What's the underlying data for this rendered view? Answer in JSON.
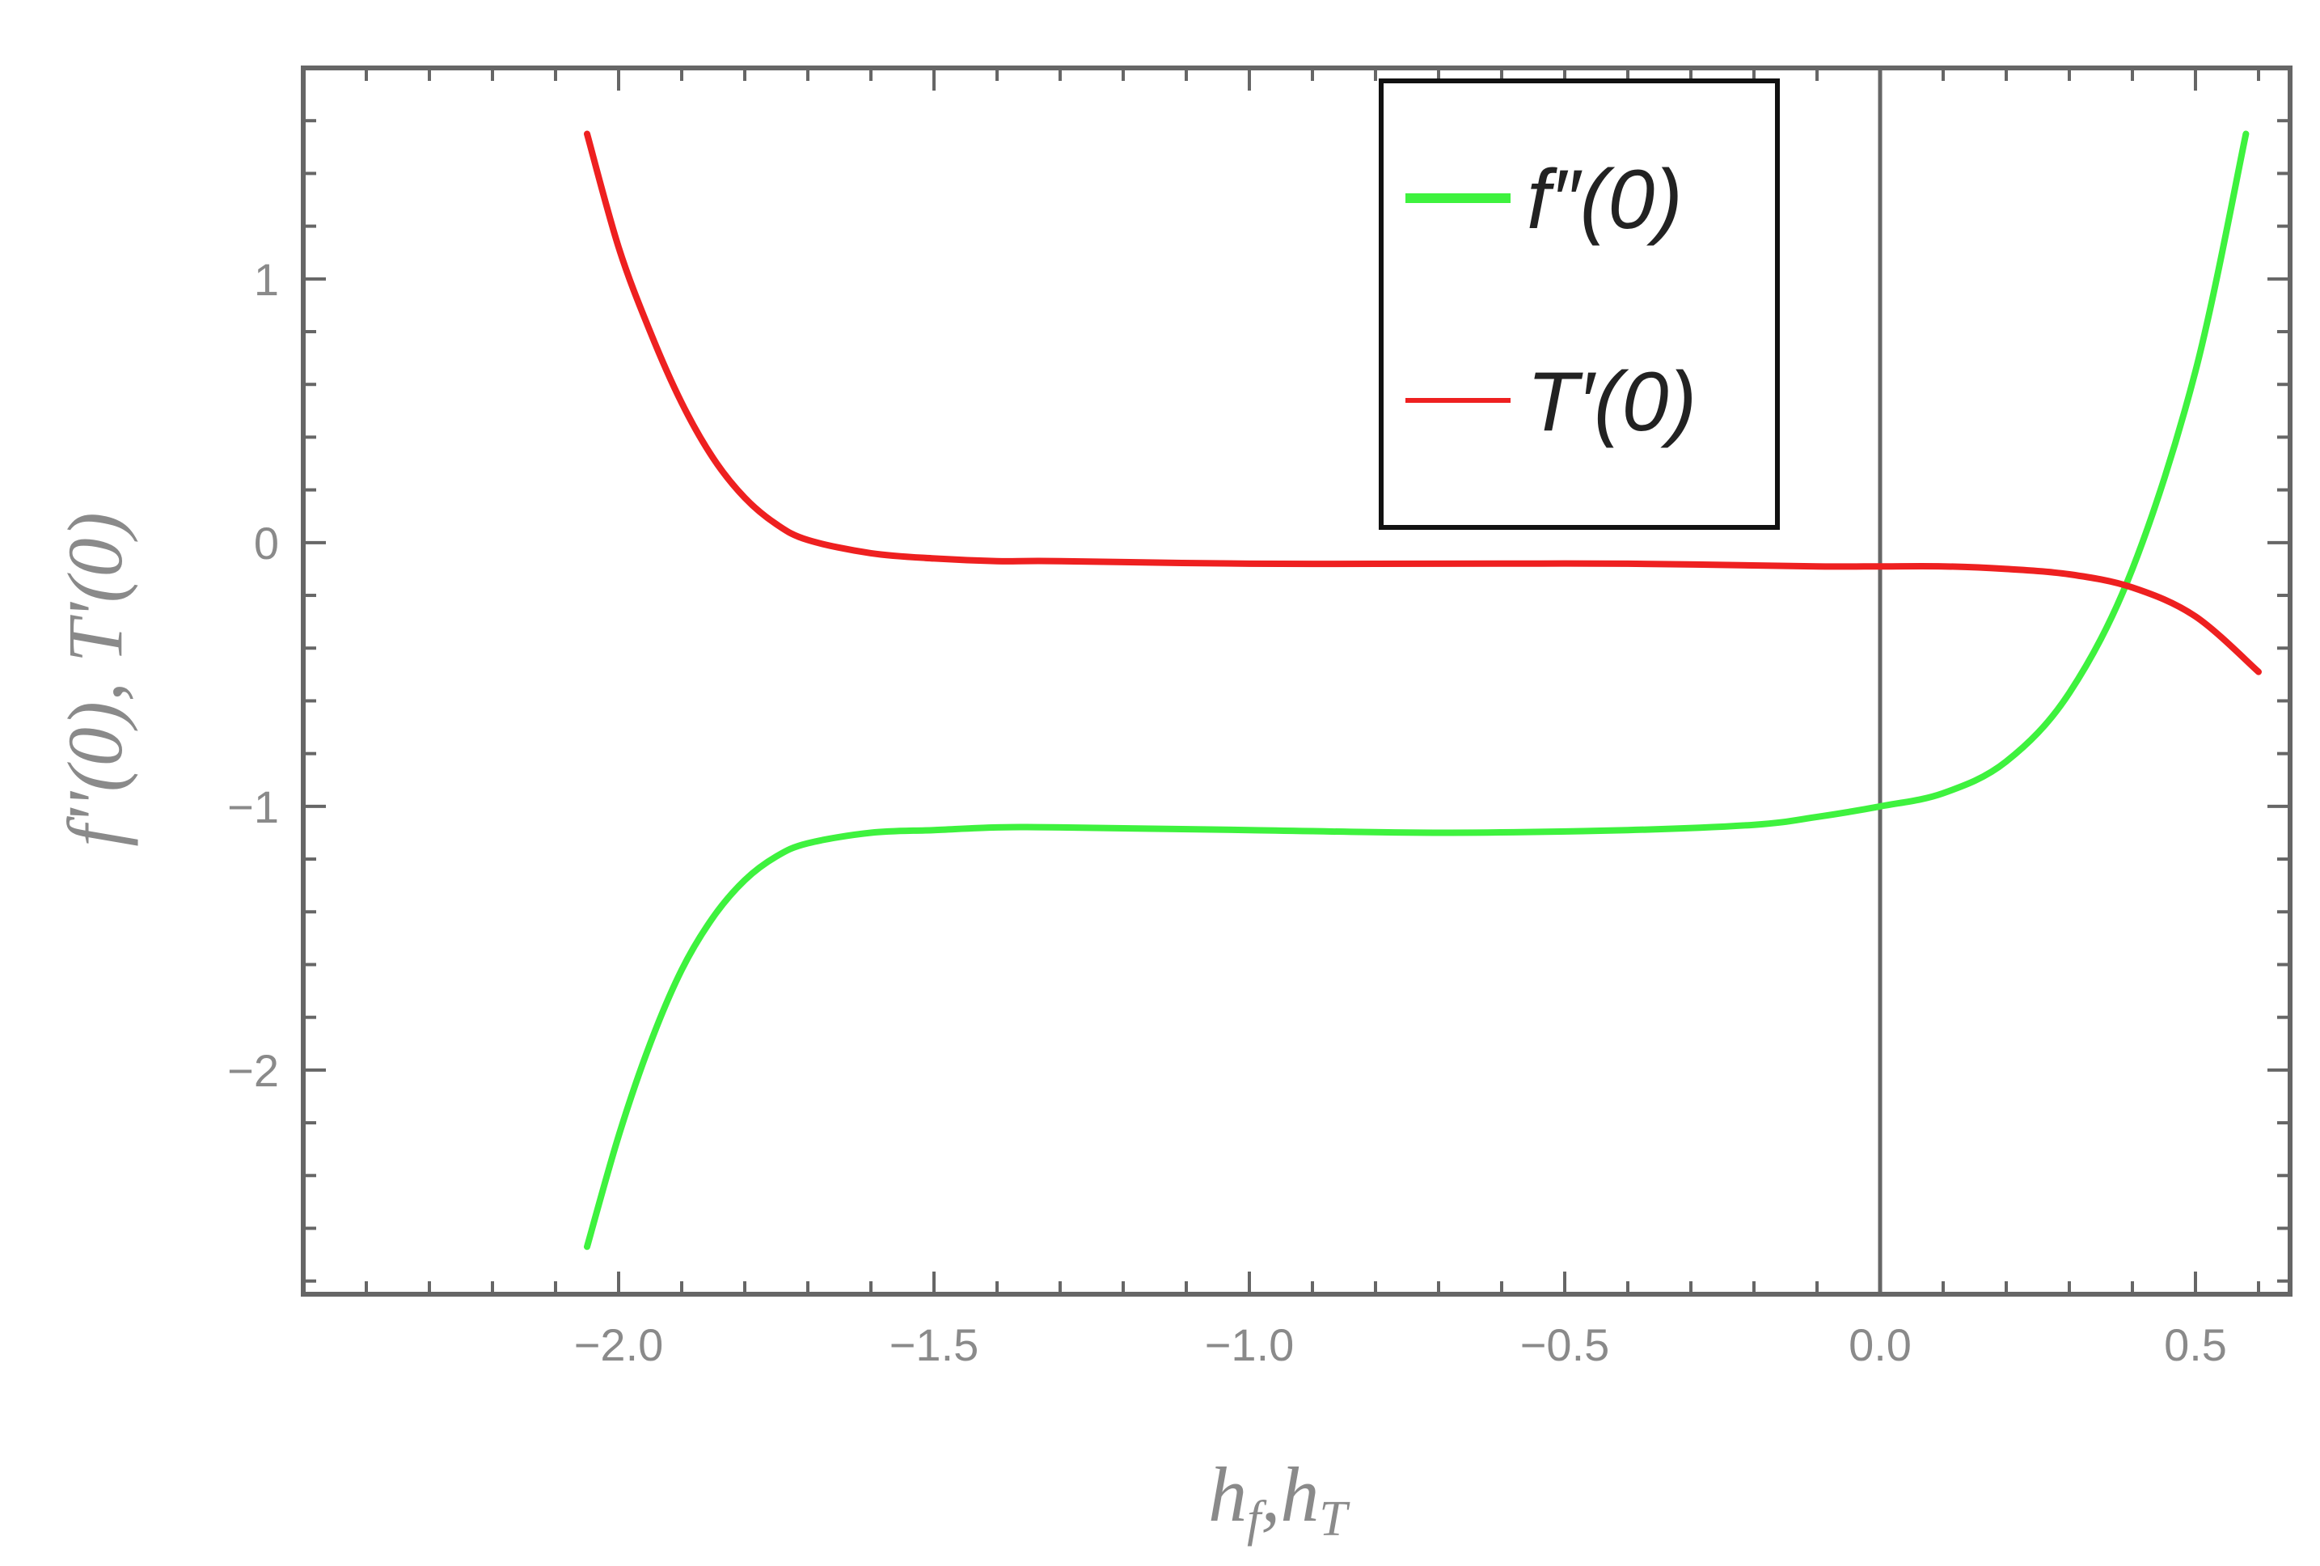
{
  "chart_data": {
    "type": "line",
    "title": "",
    "xlabel": "h_f,h_T",
    "ylabel": "f''(0), T'(0)",
    "xlim": [
      -2.5,
      0.65
    ],
    "ylim": [
      -2.85,
      1.8
    ],
    "xticks": [
      -2.0,
      -1.5,
      -1.0,
      -0.5,
      0.0,
      0.5
    ],
    "xtick_labels": [
      "−2.0",
      "−1.5",
      "−1.0",
      "−0.5",
      "0.0",
      "0.5"
    ],
    "yticks": [
      1,
      0,
      -1,
      -2
    ],
    "ytick_labels": [
      "1",
      "0",
      "−1",
      "−2"
    ],
    "vline_x": 0.0,
    "grid": false,
    "legend_position": "top-right",
    "series": [
      {
        "name": "f″(0)",
        "color": "#3ef23e",
        "x": [
          -2.05,
          -2.0,
          -1.95,
          -1.9,
          -1.85,
          -1.8,
          -1.75,
          -1.7,
          -1.6,
          -1.5,
          -1.4,
          -1.3,
          -1.0,
          -0.7,
          -0.4,
          -0.2,
          -0.1,
          0.0,
          0.1,
          0.2,
          0.3,
          0.4,
          0.5,
          0.58
        ],
        "y": [
          -2.67,
          -2.25,
          -1.9,
          -1.62,
          -1.42,
          -1.28,
          -1.19,
          -1.14,
          -1.1,
          -1.09,
          -1.08,
          -1.08,
          -1.09,
          -1.1,
          -1.09,
          -1.07,
          -1.04,
          -1.0,
          -0.95,
          -0.83,
          -0.57,
          -0.1,
          0.65,
          1.55
        ]
      },
      {
        "name": "T′(0)",
        "color": "#ee2020",
        "x": [
          -2.05,
          -2.0,
          -1.95,
          -1.9,
          -1.85,
          -1.8,
          -1.75,
          -1.7,
          -1.6,
          -1.5,
          -1.4,
          -1.3,
          -1.0,
          -0.7,
          -0.4,
          -0.1,
          0.0,
          0.1,
          0.2,
          0.3,
          0.4,
          0.5,
          0.6
        ],
        "y": [
          1.55,
          1.12,
          0.8,
          0.53,
          0.32,
          0.17,
          0.07,
          0.01,
          -0.04,
          -0.06,
          -0.07,
          -0.07,
          -0.08,
          -0.08,
          -0.08,
          -0.09,
          -0.09,
          -0.09,
          -0.1,
          -0.12,
          -0.17,
          -0.28,
          -0.49
        ]
      }
    ]
  }
}
